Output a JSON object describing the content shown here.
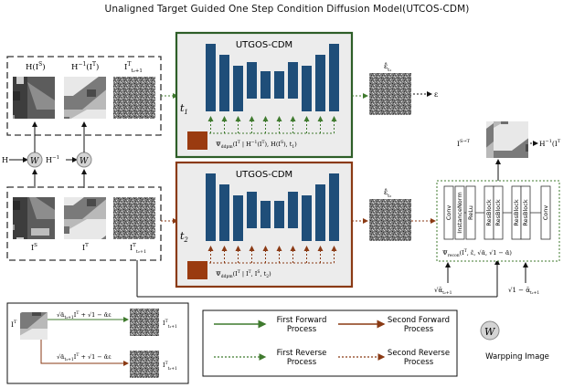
{
  "title": "Unaligned Target Guided One Step Condition Diffusion Model(UTCOS-CDM)",
  "top_model_label": "UTGOS-CDM",
  "bottom_model_label": "UTGOS-CDM",
  "top_time_label": "t",
  "top_time_sub": "1",
  "bottom_time_label": "t",
  "bottom_time_sub": "2",
  "input_labels": {
    "warp_forward": "H(I",
    "warp_forward_sup": "S",
    "warp_inverse": "H",
    "warp_inverse_sup": "−1",
    "warp_inverse_arg": "(I",
    "warp_inverse_arg_sup": "T",
    "noisy_top": "I",
    "noisy_top_sup": "T",
    "noisy_top_sub": "t₂+1",
    "source": "I",
    "source_sup": "S",
    "target": "I",
    "target_sup": "T",
    "noisy_bottom": "I",
    "noisy_bottom_sup": "T",
    "noisy_bottom_sub": "t₂+1",
    "h_label": "H",
    "h_inv_label": "H",
    "h_inv_sup": "−1"
  },
  "formulas": {
    "top_psi": "Ψ",
    "top_psi_sub": "ddpm",
    "top_psi_args": "(I",
    "top_psi_args_sup": "T",
    "top_psi_args_rest": " | H",
    "top_psi_args_rest2": "(I",
    "top_psi_args_rest3": "), H(I",
    "top_psi_args_rest4": "), t",
    "bottom_psi": "Ψ",
    "bottom_psi_sub": "ddpm",
    "bottom_psi_args": "(I",
    "bottom_psi_args_rest": " | I",
    "bottom_psi_args_rest2": ", I",
    "bottom_psi_args_rest3": ", t",
    "recon_psi": "Ψ",
    "recon_psi_sub": "recon",
    "recon_args": "(I",
    "recon_args_rest": ", ε̂",
    "sqrt_alpha": "ᾱ",
    "sqrt_one_minus": "1 − ᾱ",
    "sub_t2p1": "t₂+1"
  },
  "outputs": {
    "eps_hat_top": "ε̂",
    "eps_hat_top_sub": "t₁",
    "eps": "ε",
    "eps_hat_bottom": "ε̂",
    "eps_hat_bottom_sub": "t₂",
    "i_s_to_t": "I",
    "i_s_to_t_sup": "S→T",
    "h_inv_it": "H",
    "h_inv_it_sup": "−1",
    "h_inv_it_arg": "(I",
    "h_inv_it_arg_sup": "T"
  },
  "recon_blocks": [
    "Conv",
    "InstanceNorm",
    "ReLu",
    "ResBlock",
    "ResBlock",
    "ResBlock",
    "ResBlock",
    "Conv"
  ],
  "forward_example": {
    "input": "I",
    "input_sup": "T",
    "eq_top": "√ᾱ",
    "eq_top_sub": "t₂+1",
    "eq_top_mid": "I",
    "eq_top_mid_sup": "T",
    "eq_top_plus": " + √1 − ᾱ",
    "eq_top_end": "ε",
    "eq_bottom": "√ᾱ",
    "eq_bottom_mid": "I",
    "eq_bottom_plus": " + √1 − ᾱ",
    "eq_bottom_end": "ε",
    "out_top": "I",
    "out_top_sup": "T",
    "out_top_sub": "t₁+1",
    "out_bottom": "I",
    "out_bottom_sup": "T",
    "out_bottom_sub": "t₂+1"
  },
  "legend": {
    "first_forward": "First Forward\nProcess",
    "second_forward": "Second Forward\nProcess",
    "first_reverse": "First Reverse\nProcess",
    "second_reverse": "Second Reverse\nProcess",
    "warping": "Warpping Image",
    "warp_symbol": "W"
  },
  "colors": {
    "top_frame": "#2e5e28",
    "bottom_frame": "#8a3a14",
    "unet_block": "#1f4e79",
    "time_block": "#9a3b10",
    "green_arrow": "#3f7a2e",
    "brown_arrow": "#8a3a14",
    "warp_circle": "#d4d4d4"
  }
}
